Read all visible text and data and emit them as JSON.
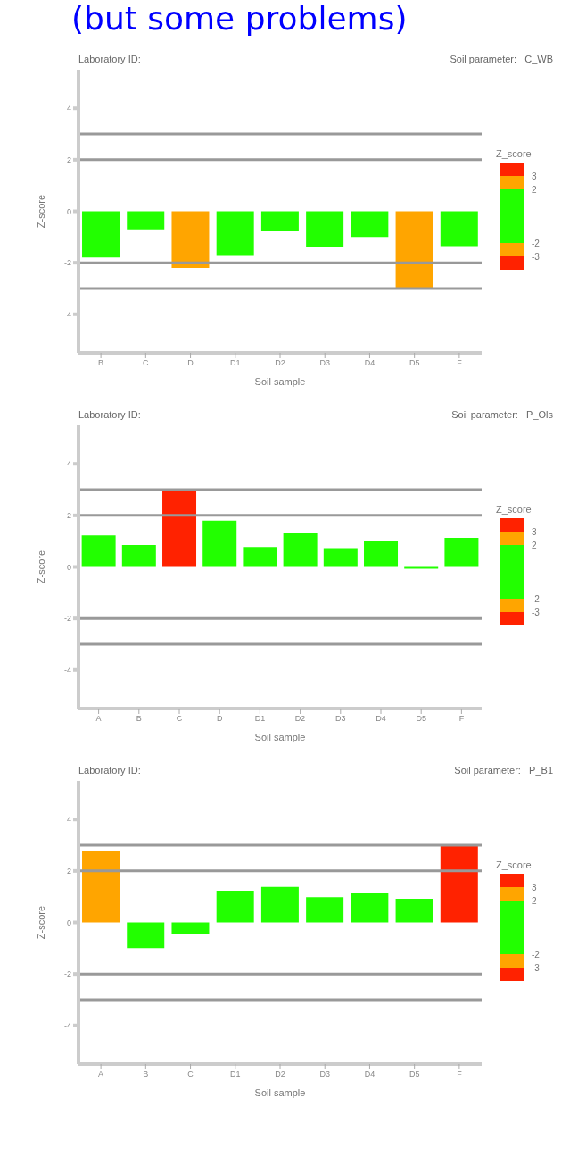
{
  "chart_data": [
    {
      "type": "bar",
      "annotations": [
        "(but some problems)"
      ],
      "title": "Laboratory ID:",
      "subtitle": "Soil parameter:   C_WB",
      "xlabel": "Soil sample",
      "ylabel": "Z-score",
      "categories": [
        "B",
        "C",
        "D",
        "D1",
        "D2",
        "D3",
        "D4",
        "D5",
        "F"
      ],
      "values": [
        -1.8,
        -0.7,
        -2.2,
        -1.7,
        -0.75,
        -1.4,
        -1.0,
        -3.0,
        -1.35
      ],
      "colors": [
        "#22ff00",
        "#22ff00",
        "#ffa500",
        "#22ff00",
        "#22ff00",
        "#22ff00",
        "#22ff00",
        "#ffa500",
        "#22ff00"
      ],
      "ylim": [
        -5.5,
        5.5
      ],
      "yticks": [
        -4,
        -2,
        0,
        2,
        4
      ],
      "ref_lines": [
        {
          "axis": "y",
          "value": 3,
          "color": "#999999"
        },
        {
          "axis": "y",
          "value": 2,
          "color": "#999999"
        },
        {
          "axis": "y",
          "value": -2,
          "color": "#999999"
        },
        {
          "axis": "y",
          "value": -3,
          "color": "#999999"
        }
      ],
      "clabel": "Z_score",
      "clim": [
        -4,
        4
      ],
      "cticks": [
        3,
        2,
        -2,
        -3
      ]
    },
    {
      "type": "bar",
      "title": "Laboratory ID:",
      "subtitle": "Soil parameter:   P_Ols",
      "xlabel": "Soil sample",
      "ylabel": "Z-score",
      "categories": [
        "A",
        "B",
        "C",
        "D",
        "D1",
        "D2",
        "D3",
        "D4",
        "D5",
        "F"
      ],
      "values": [
        1.22,
        0.85,
        3.0,
        1.8,
        0.77,
        1.3,
        0.73,
        1.0,
        -0.07,
        1.13
      ],
      "colors": [
        "#22ff00",
        "#22ff00",
        "#ff2200",
        "#22ff00",
        "#22ff00",
        "#22ff00",
        "#22ff00",
        "#22ff00",
        "#22ff00",
        "#22ff00"
      ],
      "ylim": [
        -5.5,
        5.5
      ],
      "yticks": [
        -4,
        -2,
        0,
        2,
        4
      ],
      "ref_lines": [
        {
          "axis": "y",
          "value": 3,
          "color": "#999999"
        },
        {
          "axis": "y",
          "value": 2,
          "color": "#999999"
        },
        {
          "axis": "y",
          "value": -2,
          "color": "#999999"
        },
        {
          "axis": "y",
          "value": -3,
          "color": "#999999"
        }
      ],
      "clabel": "Z_score",
      "clim": [
        -4,
        4
      ],
      "cticks": [
        3,
        2,
        -2,
        -3
      ]
    },
    {
      "type": "bar",
      "title": "Laboratory ID:",
      "subtitle": "Soil parameter:   P_B1",
      "xlabel": "Soil sample",
      "ylabel": "Z-score",
      "categories": [
        "A",
        "B",
        "C",
        "D1",
        "D2",
        "D3",
        "D4",
        "D5",
        "F"
      ],
      "values": [
        2.77,
        -1.0,
        -0.43,
        1.23,
        1.38,
        0.98,
        1.16,
        0.92,
        3.0
      ],
      "colors": [
        "#ffa500",
        "#22ff00",
        "#22ff00",
        "#22ff00",
        "#22ff00",
        "#22ff00",
        "#22ff00",
        "#22ff00",
        "#ff2200"
      ],
      "ylim": [
        -5.5,
        5.5
      ],
      "yticks": [
        -4,
        -2,
        0,
        2,
        4
      ],
      "ref_lines": [
        {
          "axis": "y",
          "value": 3,
          "color": "#999999"
        },
        {
          "axis": "y",
          "value": 2,
          "color": "#999999"
        },
        {
          "axis": "y",
          "value": -2,
          "color": "#999999"
        },
        {
          "axis": "y",
          "value": -3,
          "color": "#999999"
        }
      ],
      "clabel": "Z_score",
      "clim": [
        -4,
        4
      ],
      "cticks": [
        3,
        2,
        -2,
        -3
      ]
    }
  ]
}
